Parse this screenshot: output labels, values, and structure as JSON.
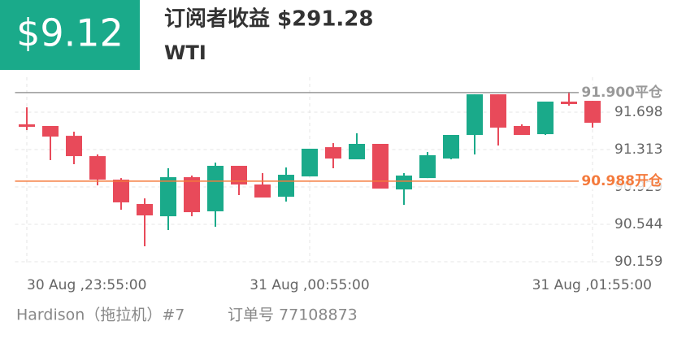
{
  "header": {
    "badge": "$9.12",
    "title": "订阅者收益 $291.28",
    "symbol": "WTI"
  },
  "chart_data": {
    "type": "candlestick",
    "categories": [
      "30 Aug ,23:55:00",
      null,
      null,
      null,
      null,
      null,
      null,
      null,
      null,
      null,
      null,
      null,
      "31 Aug ,00:55:00",
      null,
      null,
      null,
      null,
      null,
      null,
      null,
      null,
      null,
      null,
      null,
      "31 Aug ,01:55:00"
    ],
    "open": [
      91.573,
      91.556,
      91.455,
      91.246,
      91.004,
      90.753,
      90.627,
      91.029,
      90.678,
      91.146,
      90.954,
      90.828,
      91.037,
      91.338,
      91.213,
      91.372,
      90.903,
      91.02,
      91.221,
      91.464,
      91.882,
      91.556,
      91.472,
      91.807,
      91.815
    ],
    "high": [
      91.748,
      91.556,
      91.497,
      91.263,
      91.02,
      90.811,
      91.121,
      91.046,
      91.179,
      91.146,
      91.071,
      91.129,
      91.322,
      91.38,
      91.481,
      91.372,
      91.071,
      91.288,
      91.464,
      91.882,
      91.882,
      91.573,
      91.807,
      91.907,
      91.815
    ],
    "low": [
      91.514,
      91.205,
      91.163,
      90.945,
      90.694,
      90.318,
      90.485,
      90.627,
      90.519,
      90.845,
      90.82,
      90.778,
      91.037,
      91.121,
      91.213,
      90.912,
      90.744,
      91.02,
      91.213,
      91.263,
      91.355,
      91.464,
      91.464,
      91.765,
      91.539
    ],
    "close": [
      91.547,
      91.447,
      91.246,
      91.004,
      90.77,
      90.636,
      91.029,
      90.669,
      91.146,
      90.954,
      90.82,
      91.054,
      91.322,
      91.221,
      91.372,
      90.912,
      91.046,
      91.255,
      91.464,
      91.882,
      91.539,
      91.464,
      91.807,
      91.782,
      91.589
    ],
    "up_color": "#1aaa8a",
    "down_color": "#e84a5a",
    "ylim": [
      90.134,
      92.058
    ],
    "yticks": [
      90.159,
      90.544,
      90.929,
      91.313,
      91.698
    ],
    "grid": true,
    "levels": [
      {
        "value": 91.9,
        "label": "91.900平仓",
        "color": "#999999"
      },
      {
        "value": 90.988,
        "label": "90.988开仓",
        "color": "#f47a3c"
      }
    ]
  },
  "footer": {
    "trader": "Hardison（拖拉机）#7",
    "order": "订单号 77108873"
  }
}
